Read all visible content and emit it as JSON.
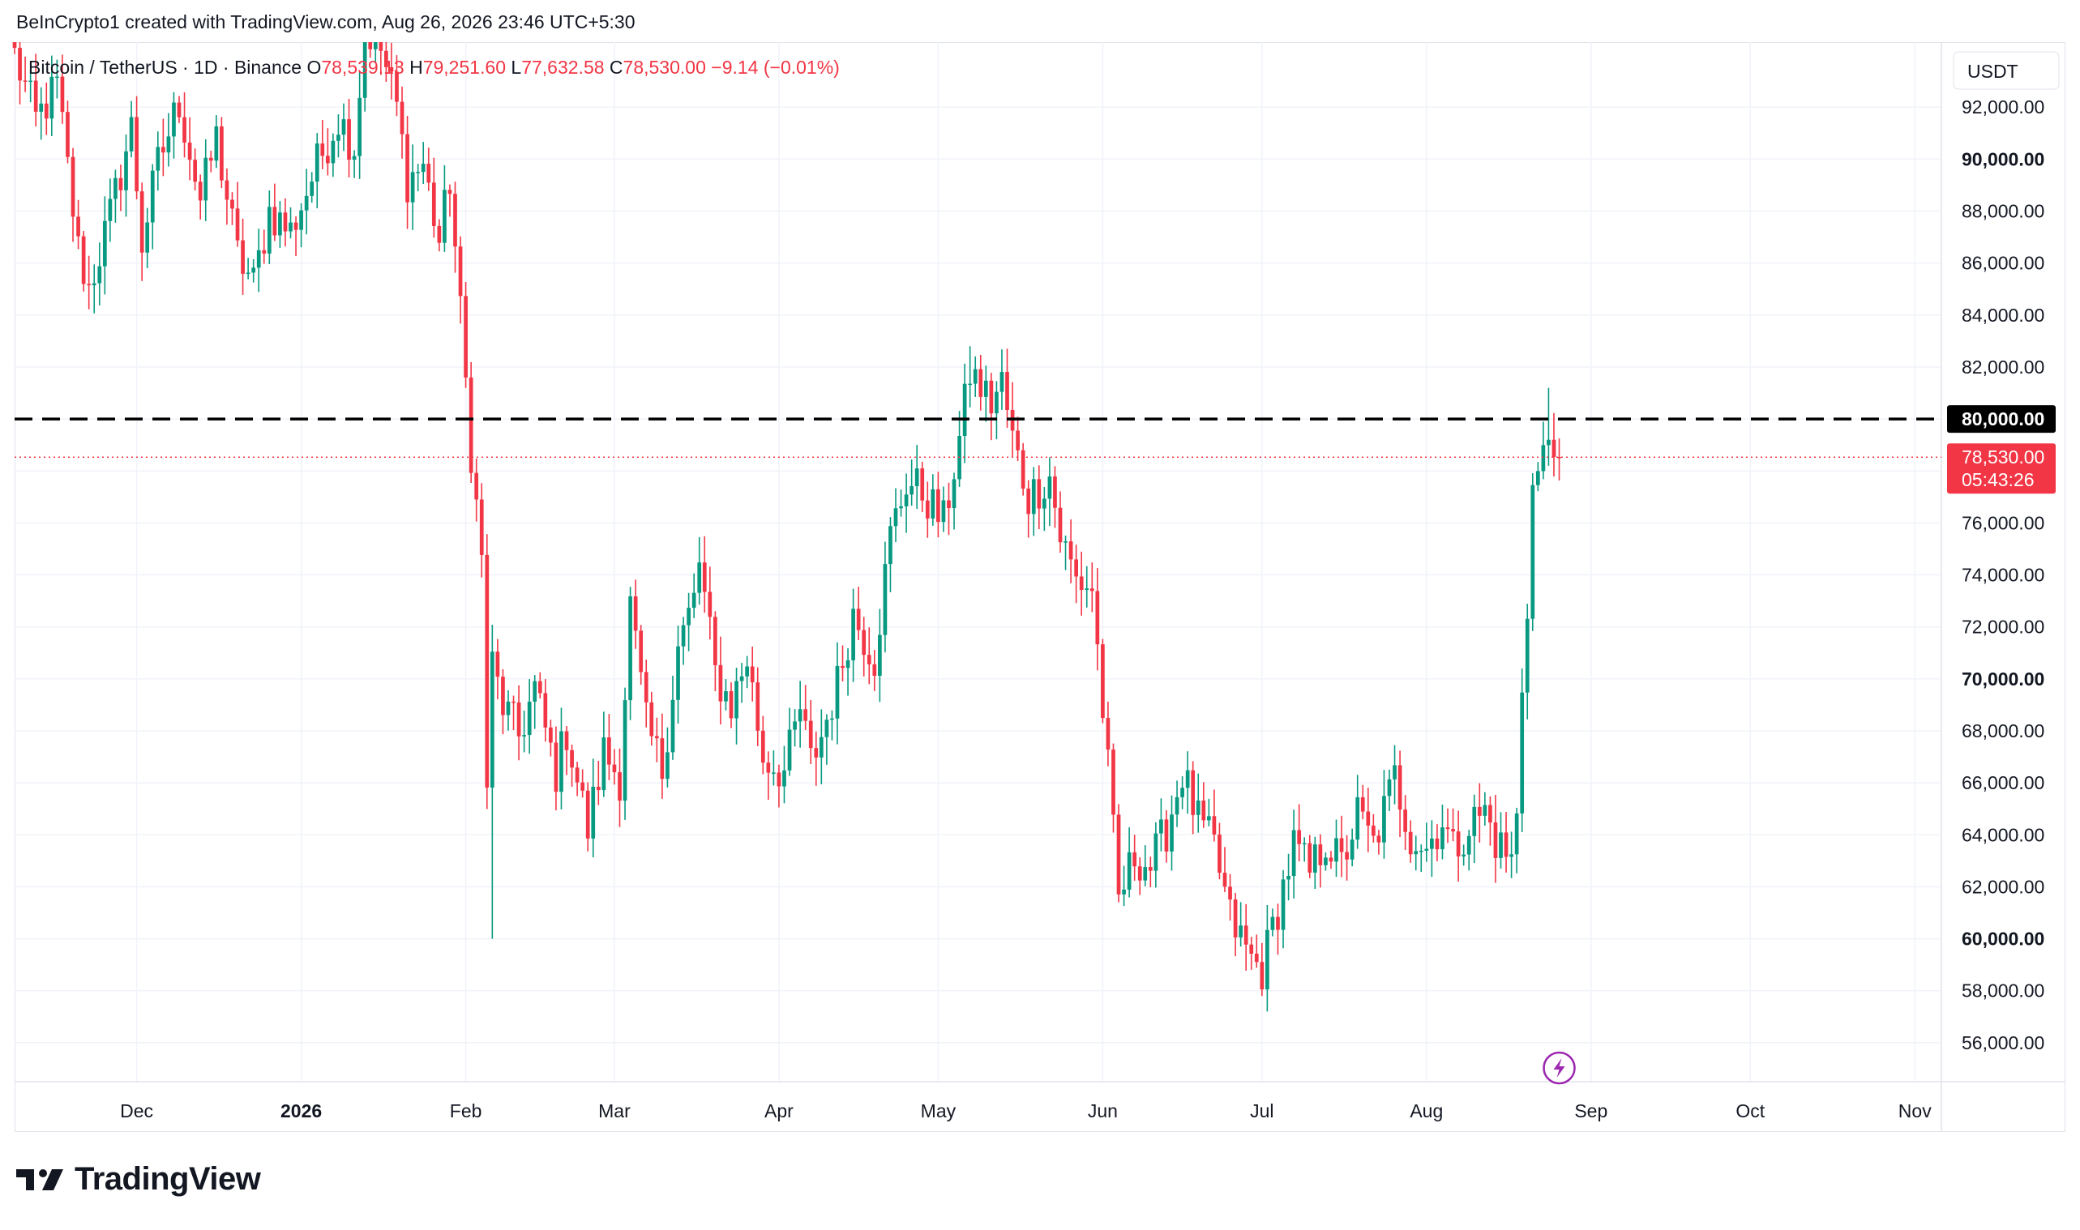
{
  "header": {
    "attribution": "BeInCrypto1 created with TradingView.com, Aug 26, 2026 23:46 UTC+5:30"
  },
  "legend": {
    "symbol": "Bitcoin / TetherUS · 1D · Binance",
    "o_label": "O",
    "o_value": "78,539.13",
    "h_label": "H",
    "h_value": "79,251.60",
    "l_label": "L",
    "l_value": "77,632.58",
    "c_label": "C",
    "c_value": "78,530.00",
    "change": "−9.14 (−0.01%)"
  },
  "price_scale": {
    "currency": "USDT",
    "ticks": [
      {
        "label": "92,000.00",
        "value": 92000,
        "bold": false
      },
      {
        "label": "90,000.00",
        "value": 90000,
        "bold": true
      },
      {
        "label": "88,000.00",
        "value": 88000,
        "bold": false
      },
      {
        "label": "86,000.00",
        "value": 86000,
        "bold": false
      },
      {
        "label": "84,000.00",
        "value": 84000,
        "bold": false
      },
      {
        "label": "82,000.00",
        "value": 82000,
        "bold": false
      },
      {
        "label": "76,000.00",
        "value": 76000,
        "bold": false
      },
      {
        "label": "74,000.00",
        "value": 74000,
        "bold": false
      },
      {
        "label": "72,000.00",
        "value": 72000,
        "bold": false
      },
      {
        "label": "70,000.00",
        "value": 70000,
        "bold": true
      },
      {
        "label": "68,000.00",
        "value": 68000,
        "bold": false
      },
      {
        "label": "66,000.00",
        "value": 66000,
        "bold": false
      },
      {
        "label": "64,000.00",
        "value": 64000,
        "bold": false
      },
      {
        "label": "62,000.00",
        "value": 62000,
        "bold": false
      },
      {
        "label": "60,000.00",
        "value": 60000,
        "bold": true
      },
      {
        "label": "58,000.00",
        "value": 58000,
        "bold": false
      },
      {
        "label": "56,000.00",
        "value": 56000,
        "bold": false
      }
    ],
    "resistance_label": "80,000.00",
    "resistance_value": 80000,
    "last_price_label": "78,530.00",
    "last_price_value": 78530,
    "countdown": "05:43:26"
  },
  "time_scale": {
    "ticks": [
      {
        "label": "Dec",
        "date": "2025-12-01",
        "bold": false
      },
      {
        "label": "2026",
        "date": "2026-01-01",
        "bold": true
      },
      {
        "label": "Feb",
        "date": "2026-02-01",
        "bold": false
      },
      {
        "label": "Mar",
        "date": "2026-03-01",
        "bold": false
      },
      {
        "label": "Apr",
        "date": "2026-04-01",
        "bold": false
      },
      {
        "label": "May",
        "date": "2026-05-01",
        "bold": false
      },
      {
        "label": "Jun",
        "date": "2026-06-01",
        "bold": false
      },
      {
        "label": "Jul",
        "date": "2026-07-01",
        "bold": false
      },
      {
        "label": "Aug",
        "date": "2026-08-01",
        "bold": false
      },
      {
        "label": "Sep",
        "date": "2026-09-01",
        "bold": false
      },
      {
        "label": "Oct",
        "date": "2026-10-01",
        "bold": false
      },
      {
        "label": "Nov",
        "date": "2026-11-01",
        "bold": false
      }
    ]
  },
  "colors": {
    "up": "#089981",
    "down": "#f23645",
    "grid": "#f0f3fa",
    "resistance": "#000000",
    "last_price": "#f23645",
    "marker": "#9c27b0"
  },
  "brand": {
    "name": "TradingView"
  },
  "chart_data": {
    "type": "candlestick",
    "interval": "1D",
    "grid": true,
    "ylim": [
      54500,
      94500
    ],
    "xlim": [
      "2025-11-08",
      "2026-11-06"
    ],
    "horizontal_lines": [
      {
        "value": 80000,
        "style": "dashed"
      },
      {
        "value": 78530,
        "style": "dotted"
      }
    ],
    "candles_date_range": [
      "2025-11-08",
      "2026-08-26"
    ],
    "anchors": [
      [
        "2025-11-08",
        94000
      ],
      [
        "2025-11-12",
        91500
      ],
      [
        "2025-11-16",
        92800
      ],
      [
        "2025-11-20",
        86500
      ],
      [
        "2025-11-22",
        85000
      ],
      [
        "2025-11-26",
        87800
      ],
      [
        "2025-11-30",
        91200
      ],
      [
        "2025-12-02",
        86800
      ],
      [
        "2025-12-05",
        89800
      ],
      [
        "2025-12-09",
        92200
      ],
      [
        "2025-12-13",
        88400
      ],
      [
        "2025-12-16",
        90800
      ],
      [
        "2025-12-20",
        86300
      ],
      [
        "2025-12-23",
        85200
      ],
      [
        "2025-12-26",
        88000
      ],
      [
        "2025-12-30",
        87200
      ],
      [
        "2026-01-04",
        89800
      ],
      [
        "2026-01-08",
        91600
      ],
      [
        "2026-01-11",
        90500
      ],
      [
        "2026-01-13",
        95000
      ],
      [
        "2026-01-16",
        94200
      ],
      [
        "2026-01-19",
        92000
      ],
      [
        "2026-01-21",
        89200
      ],
      [
        "2026-01-24",
        89800
      ],
      [
        "2026-01-27",
        86800
      ],
      [
        "2026-01-29",
        89200
      ],
      [
        "2026-01-31",
        84000
      ],
      [
        "2026-02-02",
        78800
      ],
      [
        "2026-02-04",
        74500
      ],
      [
        "2026-02-05",
        66000
      ],
      [
        "2026-02-06",
        70500
      ],
      [
        "2026-02-08",
        69000
      ],
      [
        "2026-02-11",
        67800
      ],
      [
        "2026-02-14",
        69600
      ],
      [
        "2026-02-18",
        66400
      ],
      [
        "2026-02-20",
        68000
      ],
      [
        "2026-02-24",
        64200
      ],
      [
        "2026-02-27",
        67200
      ],
      [
        "2026-03-02",
        66200
      ],
      [
        "2026-03-04",
        72800
      ],
      [
        "2026-03-07",
        68200
      ],
      [
        "2026-03-10",
        66500
      ],
      [
        "2026-03-13",
        71200
      ],
      [
        "2026-03-16",
        73000
      ],
      [
        "2026-03-17",
        74500
      ],
      [
        "2026-03-20",
        70200
      ],
      [
        "2026-03-23",
        69000
      ],
      [
        "2026-03-26",
        70800
      ],
      [
        "2026-03-29",
        67000
      ],
      [
        "2026-04-02",
        66400
      ],
      [
        "2026-04-05",
        68800
      ],
      [
        "2026-04-07",
        66800
      ],
      [
        "2026-04-09",
        67800
      ],
      [
        "2026-04-12",
        69800
      ],
      [
        "2026-04-15",
        72500
      ],
      [
        "2026-04-19",
        70800
      ],
      [
        "2026-04-22",
        75500
      ],
      [
        "2026-04-25",
        77600
      ],
      [
        "2026-04-28",
        77200
      ],
      [
        "2026-05-02",
        76000
      ],
      [
        "2026-05-05",
        79200
      ],
      [
        "2026-05-07",
        81800
      ],
      [
        "2026-05-11",
        80600
      ],
      [
        "2026-05-13",
        81400
      ],
      [
        "2026-05-15",
        79200
      ],
      [
        "2026-05-18",
        77000
      ],
      [
        "2026-05-22",
        77800
      ],
      [
        "2026-05-24",
        75500
      ],
      [
        "2026-05-27",
        73800
      ],
      [
        "2026-05-30",
        73500
      ],
      [
        "2026-06-02",
        66500
      ],
      [
        "2026-06-04",
        61500
      ],
      [
        "2026-06-07",
        63200
      ],
      [
        "2026-06-10",
        62800
      ],
      [
        "2026-06-13",
        64200
      ],
      [
        "2026-06-16",
        66400
      ],
      [
        "2026-06-19",
        64500
      ],
      [
        "2026-06-22",
        63500
      ],
      [
        "2026-06-25",
        60800
      ],
      [
        "2026-06-29",
        59200
      ],
      [
        "2026-07-01",
        58800
      ],
      [
        "2026-07-04",
        61200
      ],
      [
        "2026-07-07",
        63600
      ],
      [
        "2026-07-10",
        62500
      ],
      [
        "2026-07-13",
        63800
      ],
      [
        "2026-07-16",
        62800
      ],
      [
        "2026-07-19",
        64800
      ],
      [
        "2026-07-22",
        63600
      ],
      [
        "2026-07-26",
        66200
      ],
      [
        "2026-07-29",
        64000
      ],
      [
        "2026-08-01",
        63500
      ],
      [
        "2026-08-04",
        64600
      ],
      [
        "2026-08-06",
        63400
      ],
      [
        "2026-08-09",
        64400
      ],
      [
        "2026-08-12",
        64900
      ],
      [
        "2026-08-14",
        63800
      ],
      [
        "2026-08-17",
        63000
      ],
      [
        "2026-08-18",
        64600
      ],
      [
        "2026-08-19",
        69800
      ],
      [
        "2026-08-20",
        73000
      ],
      [
        "2026-08-21",
        77300
      ],
      [
        "2026-08-22",
        77900
      ],
      [
        "2026-08-23",
        78500
      ],
      [
        "2026-08-24",
        79200
      ],
      [
        "2026-08-25",
        78539.13
      ],
      [
        "2026-08-26",
        78530
      ]
    ],
    "last_candle": {
      "date": "2026-08-26",
      "open": 78539.13,
      "high": 79251.6,
      "low": 77632.58,
      "close": 78530.0
    },
    "extremes": [
      {
        "date": "2026-02-06",
        "label": "low",
        "value": 60000
      },
      {
        "date": "2026-05-07",
        "label": "high",
        "value": 82800
      },
      {
        "date": "2026-07-01",
        "label": "low",
        "value": 57800
      },
      {
        "date": "2026-08-24",
        "label": "high",
        "value": 81200
      }
    ]
  }
}
